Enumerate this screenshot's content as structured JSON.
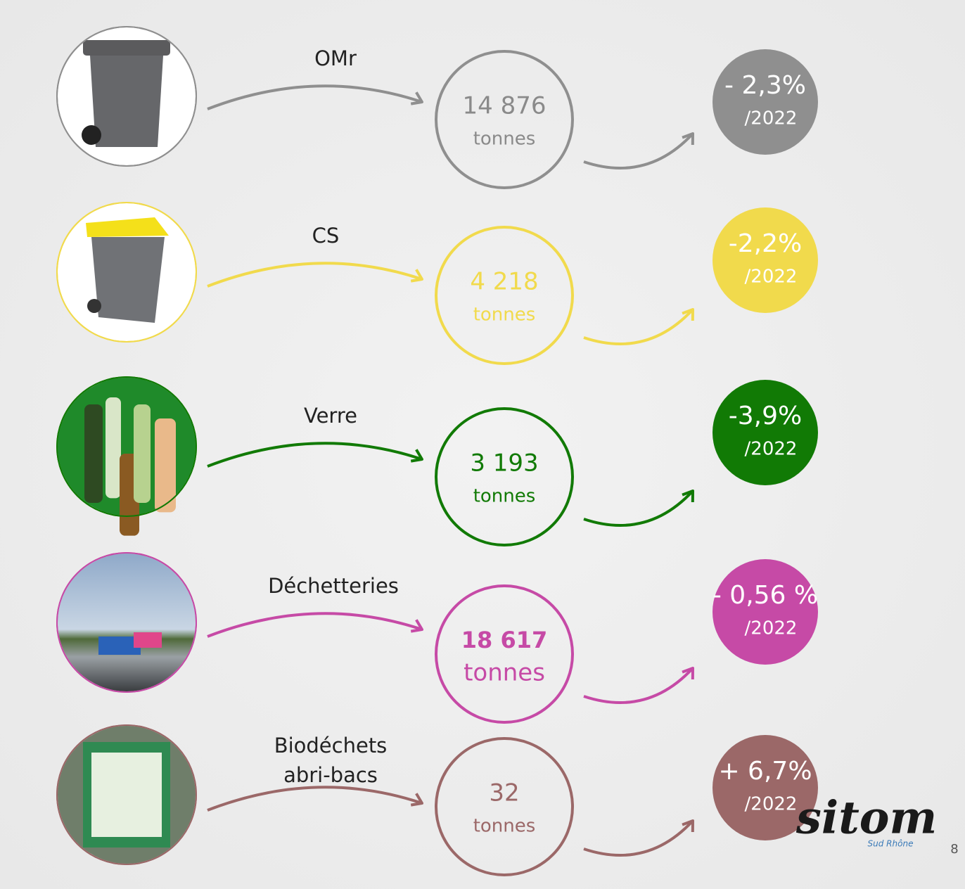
{
  "rows": [
    {
      "label": [
        "OMr"
      ],
      "value": "14 876",
      "unit": "tonnes",
      "change": "- 2,3%",
      "period": "/2022",
      "color": "#8f8f8f",
      "text_color": "#8a8a8a",
      "emphasis": false
    },
    {
      "label": [
        "CS"
      ],
      "value": "4 218",
      "unit": "tonnes",
      "change": "-2,2%",
      "period": "/2022",
      "color": "#f1da4c",
      "text_color": "#f1da4c",
      "emphasis": false
    },
    {
      "label": [
        "Verre"
      ],
      "value": "3 193",
      "unit": "tonnes",
      "change": "-3,9%",
      "period": "/2022",
      "color": "#117a05",
      "text_color": "#117a05",
      "emphasis": false
    },
    {
      "label": [
        "Déchetteries"
      ],
      "value": "18 617",
      "unit": "tonnes",
      "change": "- 0,56 %",
      "period": "/2022",
      "color": "#c64aa6",
      "text_color": "#c64aa6",
      "emphasis": true
    },
    {
      "label": [
        "Biodéchets",
        "abri-bacs"
      ],
      "value": "32",
      "unit": "tonnes",
      "change": "+ 6,7%",
      "period": "/2022",
      "color": "#9b6868",
      "text_color": "#9b6868",
      "emphasis": false
    }
  ],
  "logo": {
    "name": "sitom",
    "subtitle": "Sud Rhône"
  },
  "page_number": "8"
}
